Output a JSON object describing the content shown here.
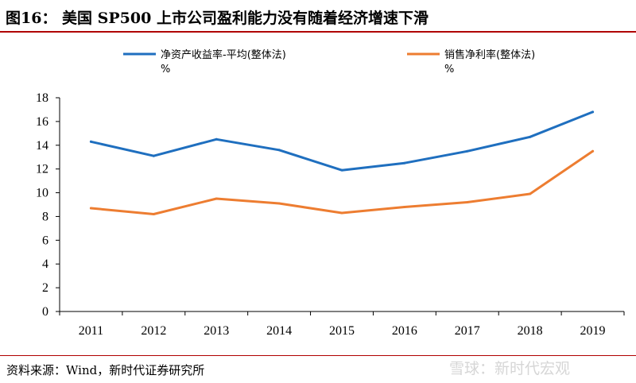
{
  "header": {
    "title": "图16： 美国 SP500 上市公司盈利能力没有随着经济增速下滑"
  },
  "footer": {
    "source": "资料来源：Wind，新时代证券研究所",
    "watermark": "雪球：新时代宏观"
  },
  "colors": {
    "title_rule": "#b00000",
    "series_roe": "#1f6fbf",
    "series_margin": "#ed7d31",
    "axis": "#000000"
  },
  "chart_data": {
    "type": "line",
    "title": "",
    "xlabel": "",
    "ylabel": "",
    "categories": [
      "2011",
      "2012",
      "2013",
      "2014",
      "2015",
      "2016",
      "2017",
      "2018",
      "2019"
    ],
    "ylim": [
      0,
      18
    ],
    "yticks": [
      0,
      2,
      4,
      6,
      8,
      10,
      12,
      14,
      16,
      18
    ],
    "grid": false,
    "legend_position": "top",
    "series": [
      {
        "name": "净资产收益率-平均(整体法)",
        "unit": "%",
        "color": "#1f6fbf",
        "values": [
          14.3,
          13.1,
          14.5,
          13.6,
          11.9,
          12.5,
          13.5,
          14.7,
          16.8
        ]
      },
      {
        "name": "销售净利率(整体法)",
        "unit": "%",
        "color": "#ed7d31",
        "values": [
          8.7,
          8.2,
          9.5,
          9.1,
          8.3,
          8.8,
          9.2,
          9.9,
          13.5
        ]
      }
    ]
  }
}
